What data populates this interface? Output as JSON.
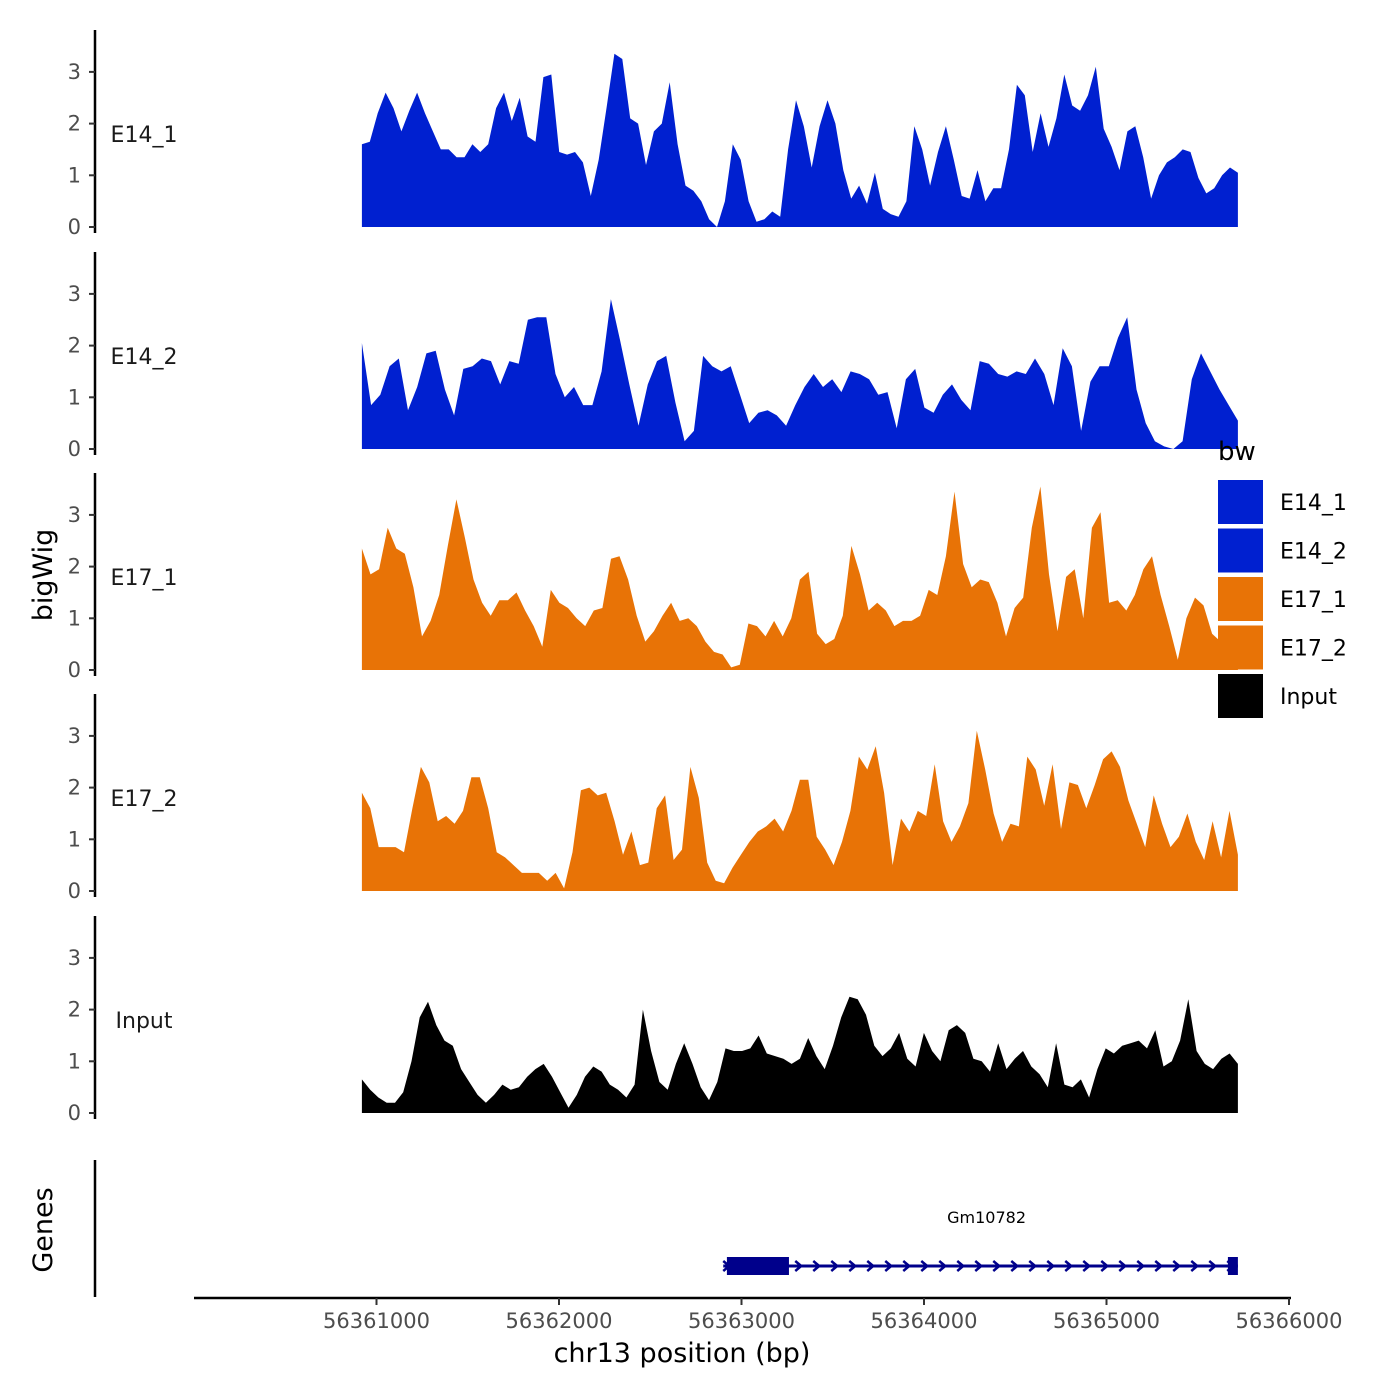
{
  "chart_data": {
    "type": "area",
    "ylabel": "bigWig",
    "xlabel": "chr13 position (bp)",
    "ylim": [
      0,
      3.8
    ],
    "y_ticks": [
      0,
      1,
      2,
      3
    ],
    "xlim": [
      56360000,
      56366000
    ],
    "x_ticks": [
      56361000,
      56362000,
      56363000,
      56364000,
      56365000,
      56366000
    ],
    "x_tick_labels": [
      "56361000",
      "56362000",
      "56363000",
      "56364000",
      "56365000",
      "56366000"
    ],
    "region_start": 56360920,
    "region_end": 56365720,
    "legend": {
      "title": "bw",
      "position": "right",
      "entries": [
        "E14_1",
        "E14_2",
        "E17_1",
        "E17_2",
        "Input"
      ]
    },
    "colors": {
      "E14_1": "#0020d0",
      "E14_2": "#0020d0",
      "E17_1": "#e87306",
      "E17_2": "#e87306",
      "Input": "#000000",
      "gene": "#00008b"
    },
    "series": [
      {
        "name": "E14_1",
        "values": [
          1.6,
          1.65,
          2.2,
          2.6,
          2.3,
          1.85,
          2.25,
          2.6,
          2.2,
          1.85,
          1.5,
          1.5,
          1.35,
          1.35,
          1.6,
          1.45,
          1.6,
          2.3,
          2.6,
          2.05,
          2.5,
          1.75,
          1.65,
          2.9,
          2.95,
          1.45,
          1.4,
          1.45,
          1.25,
          0.6,
          1.3,
          2.3,
          3.35,
          3.25,
          2.1,
          2.0,
          1.2,
          1.85,
          2.0,
          2.8,
          1.6,
          0.8,
          0.7,
          0.5,
          0.15,
          0.0,
          0.5,
          1.6,
          1.3,
          0.5,
          0.1,
          0.15,
          0.3,
          0.2,
          1.5,
          2.45,
          1.95,
          1.15,
          1.95,
          2.45,
          2.0,
          1.1,
          0.55,
          0.8,
          0.45,
          1.05,
          0.35,
          0.25,
          0.2,
          0.5,
          1.95,
          1.5,
          0.8,
          1.45,
          1.95,
          1.3,
          0.6,
          0.55,
          1.1,
          0.5,
          0.75,
          0.75,
          1.5,
          2.75,
          2.55,
          1.45,
          2.2,
          1.55,
          2.1,
          2.95,
          2.35,
          2.25,
          2.55,
          3.1,
          1.9,
          1.55,
          1.1,
          1.85,
          1.95,
          1.35,
          0.55,
          1.0,
          1.25,
          1.35,
          1.5,
          1.45,
          0.95,
          0.65,
          0.75,
          1.0,
          1.15,
          1.05
        ],
        "labels": []
      },
      {
        "name": "E14_2",
        "values": [
          2.05,
          0.85,
          1.05,
          1.6,
          1.75,
          0.75,
          1.2,
          1.85,
          1.9,
          1.15,
          0.65,
          1.55,
          1.6,
          1.75,
          1.7,
          1.25,
          1.7,
          1.65,
          2.5,
          2.55,
          2.55,
          1.45,
          1.0,
          1.2,
          0.85,
          0.85,
          1.5,
          2.9,
          2.1,
          1.25,
          0.45,
          1.25,
          1.7,
          1.8,
          0.9,
          0.15,
          0.35,
          1.8,
          1.6,
          1.5,
          1.6,
          1.05,
          0.5,
          0.7,
          0.75,
          0.65,
          0.45,
          0.85,
          1.2,
          1.45,
          1.2,
          1.35,
          1.1,
          1.5,
          1.45,
          1.35,
          1.05,
          1.1,
          0.4,
          1.35,
          1.55,
          0.8,
          0.7,
          1.05,
          1.25,
          0.95,
          0.75,
          1.7,
          1.65,
          1.45,
          1.4,
          1.5,
          1.45,
          1.75,
          1.45,
          0.85,
          1.95,
          1.6,
          0.35,
          1.3,
          1.6,
          1.6,
          2.15,
          2.55,
          1.15,
          0.5,
          0.15,
          0.05,
          0.0,
          0.15,
          1.35,
          1.85,
          1.5,
          1.15,
          0.85,
          0.55
        ],
        "labels": []
      },
      {
        "name": "E17_1",
        "values": [
          2.35,
          1.85,
          1.95,
          2.75,
          2.35,
          2.25,
          1.6,
          0.65,
          0.95,
          1.45,
          2.4,
          3.3,
          2.55,
          1.75,
          1.3,
          1.05,
          1.35,
          1.35,
          1.5,
          1.15,
          0.85,
          0.45,
          1.55,
          1.3,
          1.2,
          1.0,
          0.85,
          1.15,
          1.2,
          2.15,
          2.2,
          1.75,
          1.05,
          0.55,
          0.75,
          1.05,
          1.3,
          0.95,
          1.0,
          0.85,
          0.55,
          0.35,
          0.3,
          0.05,
          0.1,
          0.9,
          0.85,
          0.65,
          0.95,
          0.65,
          1.0,
          1.75,
          1.9,
          0.7,
          0.5,
          0.6,
          1.05,
          2.4,
          1.85,
          1.15,
          1.3,
          1.15,
          0.85,
          0.95,
          0.95,
          1.05,
          1.55,
          1.45,
          2.2,
          3.45,
          2.05,
          1.6,
          1.75,
          1.7,
          1.3,
          0.65,
          1.2,
          1.4,
          2.75,
          3.55,
          1.85,
          0.75,
          1.8,
          1.95,
          1.0,
          2.75,
          3.05,
          1.3,
          1.35,
          1.15,
          1.45,
          1.95,
          2.2,
          1.45,
          0.85,
          0.2,
          1.0,
          1.4,
          1.25,
          0.7,
          0.55,
          0.5,
          0.55
        ],
        "labels": []
      },
      {
        "name": "E17_2",
        "values": [
          1.9,
          1.6,
          0.85,
          0.85,
          0.85,
          0.75,
          1.6,
          2.4,
          2.1,
          1.35,
          1.45,
          1.3,
          1.55,
          2.2,
          2.2,
          1.6,
          0.75,
          0.65,
          0.5,
          0.35,
          0.35,
          0.35,
          0.2,
          0.35,
          0.05,
          0.75,
          1.95,
          2.0,
          1.85,
          1.9,
          1.35,
          0.7,
          1.15,
          0.5,
          0.55,
          1.6,
          1.85,
          0.6,
          0.8,
          2.4,
          1.8,
          0.55,
          0.2,
          0.15,
          0.45,
          0.7,
          0.95,
          1.15,
          1.25,
          1.4,
          1.15,
          1.55,
          2.15,
          2.15,
          1.05,
          0.8,
          0.5,
          0.95,
          1.55,
          2.6,
          2.35,
          2.8,
          1.9,
          0.5,
          1.4,
          1.15,
          1.55,
          1.45,
          2.45,
          1.35,
          0.95,
          1.25,
          1.7,
          3.1,
          2.35,
          1.5,
          0.95,
          1.3,
          1.25,
          2.6,
          2.35,
          1.65,
          2.45,
          1.2,
          2.1,
          2.05,
          1.6,
          2.05,
          2.55,
          2.7,
          2.4,
          1.75,
          1.3,
          0.85,
          1.85,
          1.3,
          0.85,
          1.05,
          1.5,
          0.95,
          0.6,
          1.35,
          0.65,
          1.55,
          0.7
        ],
        "labels": []
      },
      {
        "name": "Input",
        "values": [
          0.65,
          0.45,
          0.3,
          0.2,
          0.2,
          0.4,
          1.0,
          1.85,
          2.15,
          1.7,
          1.4,
          1.3,
          0.85,
          0.6,
          0.35,
          0.2,
          0.35,
          0.55,
          0.45,
          0.5,
          0.7,
          0.85,
          0.95,
          0.7,
          0.4,
          0.1,
          0.35,
          0.7,
          0.9,
          0.8,
          0.55,
          0.45,
          0.3,
          0.55,
          2.0,
          1.2,
          0.6,
          0.45,
          0.95,
          1.35,
          0.95,
          0.5,
          0.25,
          0.6,
          1.25,
          1.2,
          1.2,
          1.25,
          1.5,
          1.15,
          1.1,
          1.05,
          0.95,
          1.05,
          1.45,
          1.1,
          0.85,
          1.3,
          1.85,
          2.25,
          2.2,
          1.9,
          1.3,
          1.1,
          1.25,
          1.55,
          1.05,
          0.9,
          1.55,
          1.2,
          1.0,
          1.6,
          1.7,
          1.55,
          1.05,
          1.0,
          0.8,
          1.35,
          0.85,
          1.05,
          1.2,
          0.9,
          0.75,
          0.5,
          1.35,
          0.55,
          0.5,
          0.65,
          0.3,
          0.85,
          1.25,
          1.15,
          1.3,
          1.35,
          1.4,
          1.25,
          1.6,
          0.9,
          1.0,
          1.4,
          2.2,
          1.2,
          0.95,
          0.85,
          1.05,
          1.15,
          0.95
        ],
        "labels": []
      }
    ],
    "genes_track_label": "Genes",
    "genes": [
      {
        "name": "Gm10782",
        "start": 56362900,
        "end": 56365720,
        "thick_start": 56362920,
        "thick_end": 56363260,
        "strand": "+"
      }
    ]
  }
}
